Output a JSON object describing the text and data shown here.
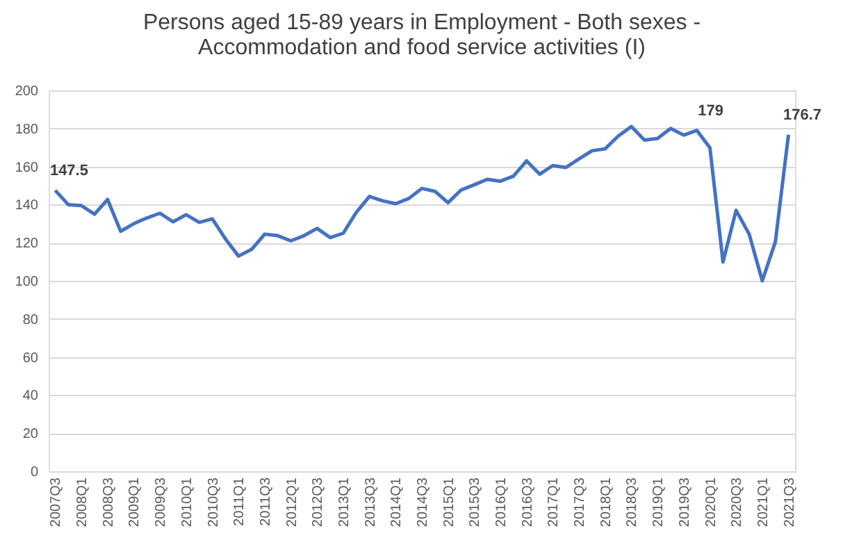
{
  "chart_data": {
    "type": "line",
    "title": "Persons aged 15-89 years in Employment - Both sexes -\nAccommodation and food service activities (I)",
    "categories": [
      "2007Q3",
      null,
      "2008Q1",
      null,
      "2008Q3",
      null,
      "2009Q1",
      null,
      "2009Q3",
      null,
      "2010Q1",
      null,
      "2010Q3",
      null,
      "2011Q1",
      null,
      "2011Q3",
      null,
      "2012Q1",
      null,
      "2012Q3",
      null,
      "2013Q1",
      null,
      "2013Q3",
      null,
      "2014Q1",
      null,
      "2014Q3",
      null,
      "2015Q1",
      null,
      "2015Q3",
      null,
      "2016Q1",
      null,
      "2016Q3",
      null,
      "2017Q1",
      null,
      "2017Q3",
      null,
      "2018Q1",
      null,
      "2018Q3",
      null,
      "2019Q1",
      null,
      "2019Q3",
      null,
      "2020Q1",
      null,
      "2020Q3",
      null,
      "2021Q1",
      null,
      "2021Q3"
    ],
    "series": [
      {
        "color": "#4472c4",
        "values": [
          147.5,
          140,
          139.5,
          135,
          142.7,
          126,
          130,
          133,
          135.5,
          131,
          134.7,
          130.7,
          132.5,
          122,
          113,
          116.5,
          124.5,
          123.7,
          121,
          123.7,
          127.5,
          122.7,
          125,
          136,
          144.3,
          142,
          140.5,
          143.2,
          148.5,
          147,
          141,
          147.7,
          150.4,
          153.3,
          152.3,
          155,
          163,
          156,
          160.5,
          159.5,
          164,
          168.3,
          169.3,
          176,
          181,
          173.9,
          174.7,
          180,
          176.5,
          179,
          169.9,
          109.9,
          137,
          124.5,
          100,
          120.5,
          176.7
        ],
        "value_labels": [
          "147.5",
          null,
          null,
          null,
          null,
          null,
          null,
          null,
          null,
          null,
          null,
          null,
          null,
          null,
          null,
          null,
          null,
          null,
          null,
          null,
          null,
          null,
          null,
          null,
          null,
          null,
          null,
          null,
          null,
          null,
          null,
          null,
          null,
          null,
          null,
          null,
          null,
          null,
          null,
          null,
          null,
          null,
          null,
          null,
          null,
          null,
          null,
          null,
          null,
          "179",
          null,
          null,
          null,
          null,
          null,
          null,
          "176.7"
        ]
      }
    ],
    "ylim": [
      0,
      200
    ],
    "yticks": [
      0,
      20,
      40,
      60,
      80,
      100,
      120,
      140,
      160,
      180,
      200
    ],
    "grid": "y",
    "marker": "none",
    "line_style": "solid"
  }
}
